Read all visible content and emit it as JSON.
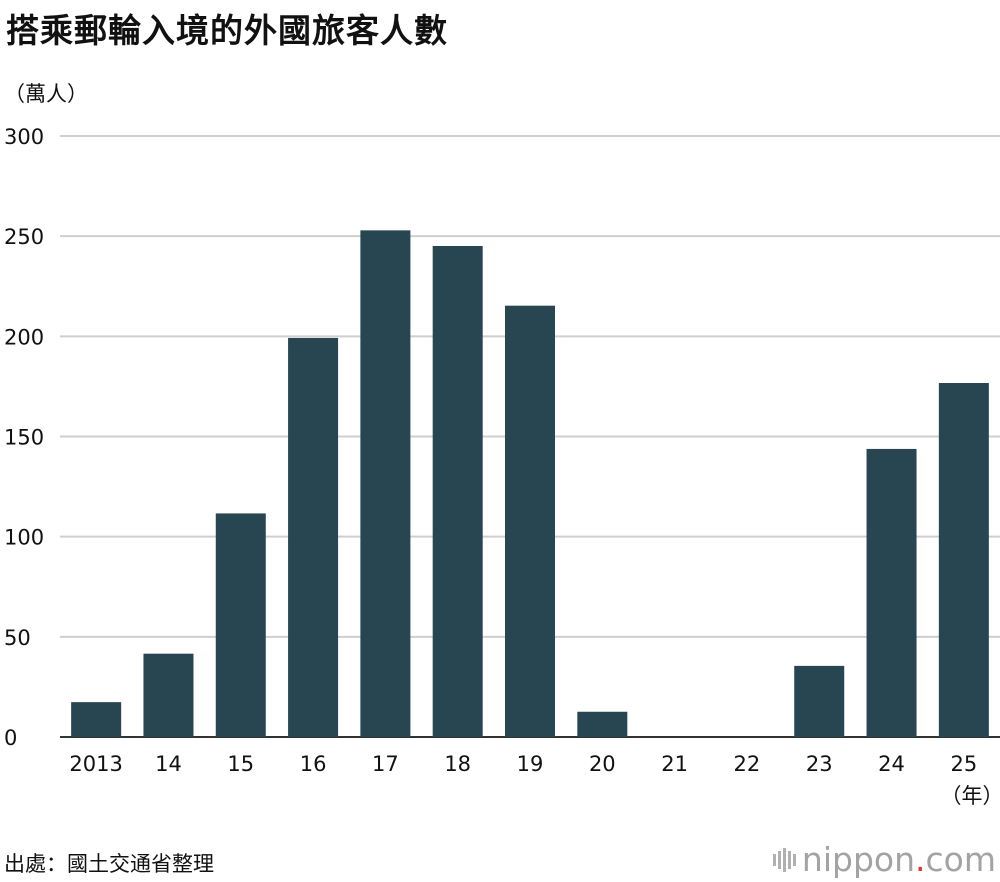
{
  "title": "搭乘郵輪入境的外國旅客人數",
  "unit_label": "（萬人）",
  "x_unit_label": "（年）",
  "source": "出處：國土交通省整理",
  "logo": {
    "prefix": "nippon",
    "dot": ".",
    "suffix": "com"
  },
  "colors": {
    "bar": "#284552",
    "grid": "#cfcfcf",
    "axis": "#333333"
  },
  "chart_data": {
    "type": "bar",
    "title": "搭乘郵輪入境的外國旅客人數",
    "ylabel": "（萬人）",
    "xlabel": "（年）",
    "categories": [
      "2013",
      "14",
      "15",
      "16",
      "17",
      "18",
      "19",
      "20",
      "21",
      "22",
      "23",
      "24",
      "25"
    ],
    "values": [
      17.4,
      41.6,
      111.6,
      199.2,
      252.9,
      245.1,
      215.3,
      12.6,
      0,
      0,
      35.5,
      143.8,
      176.7
    ],
    "yticks": [
      0,
      50,
      100,
      150,
      200,
      250,
      300
    ],
    "ylim": [
      0,
      300
    ],
    "grid": true
  }
}
